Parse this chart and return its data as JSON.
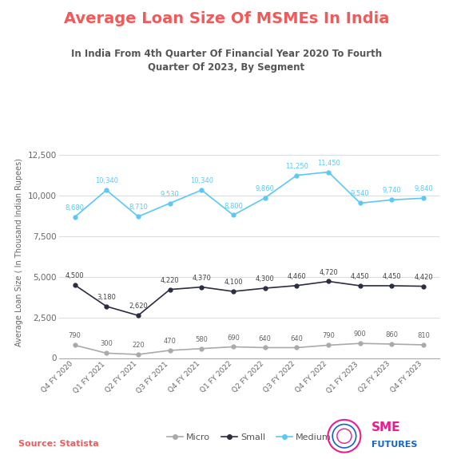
{
  "title": "Average Loan Size Of MSMEs In India",
  "subtitle": "In India From 4th Quarter Of Financial Year 2020 To Fourth\nQuarter Of 2023, By Segment",
  "ylabel": "Average Loan Size ( In Thousand Indian Rupees)",
  "source": "Source: Statista",
  "categories": [
    "Q4 FY 2020",
    "Q1 FY 2021",
    "Q2 FY 2021",
    "Q3 FY 2021",
    "Q4 FY 2021",
    "Q1 FY 2022",
    "Q2 FY 2022",
    "Q3 FY 2022",
    "Q4 FY 2022",
    "Q1 FY 2023",
    "Q2 FY 2023",
    "Q4 FY 2023"
  ],
  "micro": [
    790,
    300,
    220,
    470,
    580,
    690,
    640,
    640,
    790,
    900,
    860,
    810
  ],
  "small": [
    4500,
    3180,
    2620,
    4220,
    4370,
    4100,
    4300,
    4460,
    4720,
    4450,
    4450,
    4420
  ],
  "medium": [
    8680,
    10340,
    8710,
    9530,
    10340,
    8800,
    9860,
    11250,
    11450,
    9540,
    9740,
    9840
  ],
  "micro_color": "#aaaaaa",
  "small_color": "#2b2d42",
  "medium_color": "#5bc8f5",
  "title_color": "#f05a5a",
  "subtitle_color": "#555555",
  "source_color": "#f05a5a",
  "bg_color": "#ffffff",
  "ylim": [
    0,
    13000
  ],
  "yticks": [
    0,
    2500,
    5000,
    7500,
    10000,
    12500
  ],
  "grid_color": "#dddddd"
}
